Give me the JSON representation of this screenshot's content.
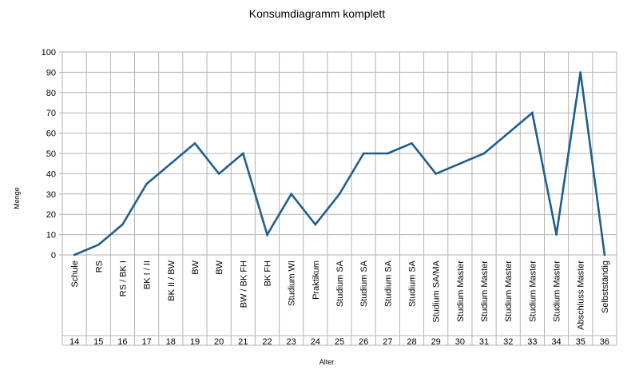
{
  "chart_data": {
    "type": "line",
    "title": "Konsumdiagramm  komplett",
    "xlabel": "Alter",
    "ylabel": "Menge",
    "ylim": [
      0,
      100
    ],
    "yticks": [
      0,
      10,
      20,
      30,
      40,
      50,
      60,
      70,
      80,
      90,
      100
    ],
    "grid": true,
    "legend": "none",
    "line_color": "#1f5f8f",
    "grid_color": "#b3b3b3",
    "categories": [
      "Schule",
      "RS",
      "RS / BK I",
      "BK I / II",
      "BK II / BW",
      "BW",
      "BW",
      "BW / BK FH",
      "BK FH",
      "Studium  WI",
      "Praktikum",
      "Studium  SA",
      "Studium  SA",
      "Studium  SA",
      "Studium  SA",
      "Studium  SA/MA",
      "Studium  Master",
      "Studium  Master",
      "Studium  Master",
      "Studium  Master",
      "Studium  Master",
      "Abschluss  Master",
      "Selbstständig"
    ],
    "ages": [
      "14",
      "15",
      "16",
      "17",
      "18",
      "19",
      "20",
      "21",
      "22",
      "23",
      "24",
      "25",
      "26",
      "27",
      "28",
      "29",
      "30",
      "31",
      "32",
      "33",
      "34",
      "35",
      "36"
    ],
    "values": [
      0,
      5,
      15,
      35,
      45,
      55,
      40,
      50,
      10,
      30,
      15,
      30,
      50,
      50,
      55,
      40,
      45,
      50,
      60,
      70,
      10,
      90,
      0
    ]
  }
}
